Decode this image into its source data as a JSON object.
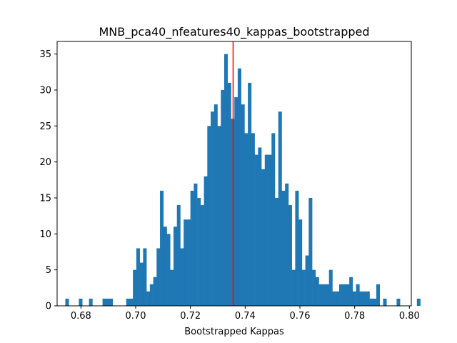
{
  "chart_data": {
    "type": "histogram",
    "title": "MNB_pca40_nfeatures40_kappas_bootstrapped",
    "xlabel": "Bootstrapped Kappas",
    "ylabel": "",
    "xlim": [
      0.6713,
      0.8007
    ],
    "ylim": [
      0,
      36.75
    ],
    "x_ticks": [
      0.68,
      0.7,
      0.72,
      0.74,
      0.76,
      0.78,
      0.8
    ],
    "x_tick_labels": [
      "0.68",
      "0.70",
      "0.72",
      "0.74",
      "0.76",
      "0.78",
      "0.80"
    ],
    "y_ticks": [
      0,
      5,
      10,
      15,
      20,
      25,
      30,
      35
    ],
    "y_tick_labels": [
      "0",
      "5",
      "10",
      "15",
      "20",
      "25",
      "30",
      "35"
    ],
    "bin_start": 0.6743,
    "bin_width": 0.001235,
    "counts": [
      1,
      0,
      0,
      0,
      1,
      0,
      0,
      1,
      0,
      0,
      0,
      1,
      1,
      1,
      0,
      0,
      0,
      0,
      1,
      1,
      5,
      8,
      6,
      8,
      2,
      3,
      4,
      8,
      16,
      11,
      10,
      5,
      11,
      14,
      8,
      12,
      12,
      16,
      17,
      15,
      14,
      18,
      25,
      27,
      28,
      25,
      30,
      35,
      31,
      26,
      29,
      33,
      28,
      24,
      31,
      24,
      21,
      22,
      19,
      21,
      21,
      24,
      15,
      27,
      16,
      17,
      14,
      5,
      16,
      12,
      5,
      7,
      15,
      5,
      4,
      3,
      3,
      3,
      5,
      2,
      2,
      3,
      3,
      3,
      4,
      2,
      3,
      2,
      2,
      2,
      1,
      1,
      3,
      0,
      1,
      0,
      0,
      0,
      1,
      0,
      0,
      0,
      0,
      0,
      1
    ],
    "bar_color": "#1f77b4",
    "reference_line": {
      "value": 0.7356,
      "color": "#ff0000"
    },
    "grid": false
  }
}
